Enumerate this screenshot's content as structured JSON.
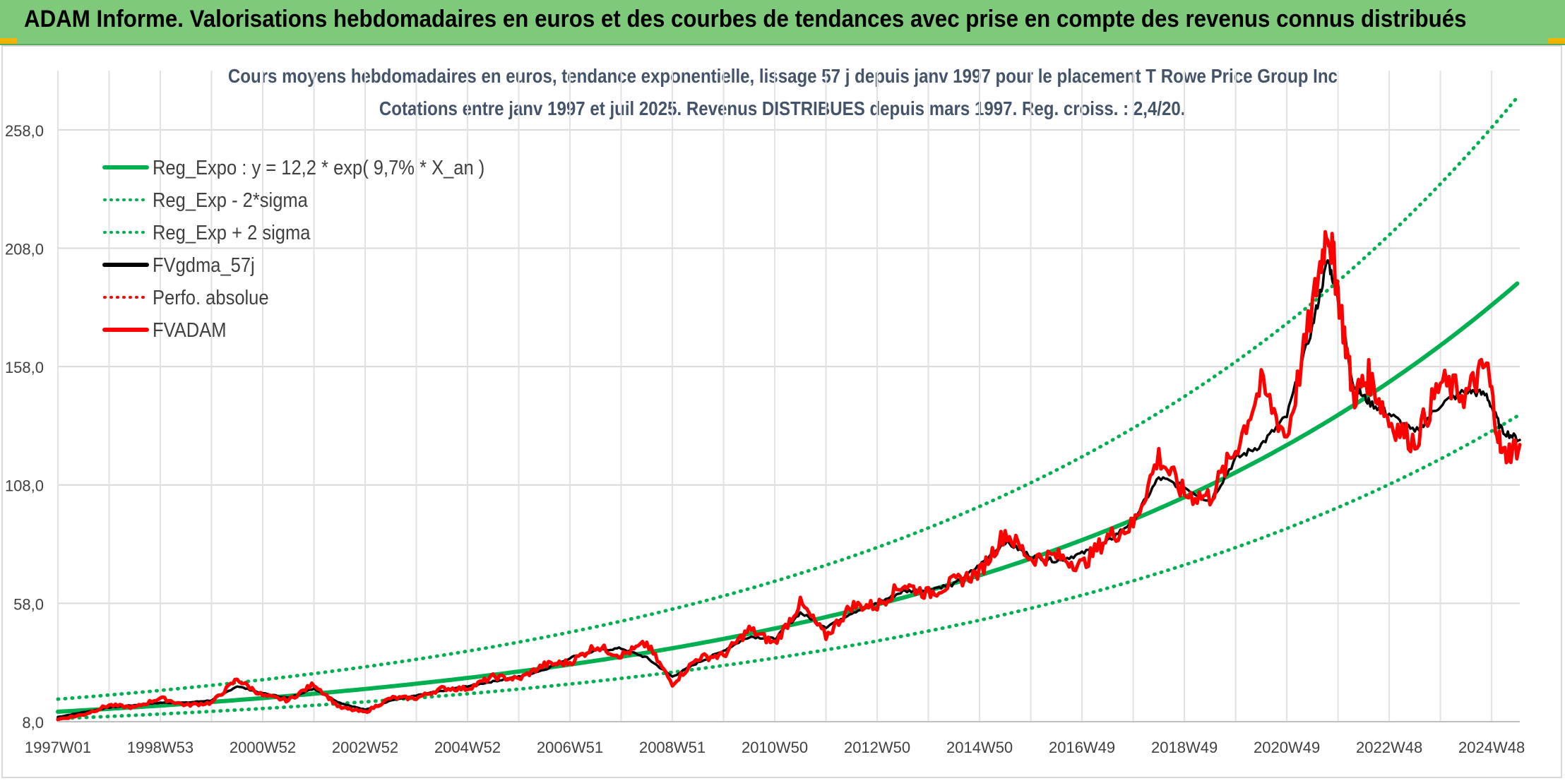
{
  "header": {
    "banner": "ADAM Informe. Valorisations hebdomadaires en euros et des courbes de tendances avec prise en compte des revenus connus distribués"
  },
  "chart_data": {
    "type": "line",
    "title": "Cours moyens hebdomadaires en euros, tendance exponentielle, lissage 57 j depuis janv 1997 pour le placement T Rowe Price Group Inc",
    "subtitle": "Cotations entre janv 1997 et juil 2025. Revenus DISTRIBUES depuis mars 1997. Reg. croiss. : 2,4/20.",
    "xlabel": "",
    "ylabel": "",
    "ylim": [
      8,
      283
    ],
    "y_ticks": [
      "8,0",
      "58,0",
      "108,0",
      "158,0",
      "208,0",
      "258,0"
    ],
    "x_ticks": [
      "1997W01",
      "1998W53",
      "2000W52",
      "2002W52",
      "2004W52",
      "2006W51",
      "2008W51",
      "2010W50",
      "2012W50",
      "2014W50",
      "2016W49",
      "2018W49",
      "2020W49",
      "2022W48",
      "2024W48"
    ],
    "x_range_years": [
      1997.0,
      2025.55
    ],
    "grid": true,
    "legend_position": "top-left",
    "colors": {
      "trend": "#00b050",
      "smooth": "#000000",
      "adam": "#ff0000"
    },
    "regression": {
      "a": 12.2,
      "rate": 0.097
    },
    "legend": [
      {
        "label": "Reg_Expo : y = 12,2 * exp( 9,7% *  X_an )",
        "color": "#00b050",
        "style": "solid"
      },
      {
        "label": "Reg_Exp - 2*sigma",
        "color": "#00b050",
        "style": "dotted"
      },
      {
        "label": "Reg_Exp + 2 sigma",
        "color": "#00b050",
        "style": "dotted"
      },
      {
        "label": "FVgdma_57j",
        "color": "#000000",
        "style": "solid"
      },
      {
        "label": "Perfo. absolue",
        "color": "#ff0000",
        "style": "dotted"
      },
      {
        "label": "FVADAM",
        "color": "#ff0000",
        "style": "solid"
      }
    ],
    "series": [
      {
        "name": "Reg_Expo : y = 12,2 * exp( 9,7% *  X_an )",
        "x_years": [
          1997,
          1999,
          2001,
          2003,
          2005,
          2007,
          2009,
          2011,
          2013,
          2015,
          2017,
          2019,
          2021,
          2023,
          2025.55
        ],
        "values": [
          12.2,
          14.7,
          17.8,
          21.5,
          25.9,
          31.3,
          37.8,
          45.7,
          55.1,
          66.6,
          80.4,
          97.1,
          117.3,
          141.6,
          194.0
        ]
      },
      {
        "name": "Reg_Exp - 2*sigma",
        "x_years": [
          1997,
          1999,
          2001,
          2003,
          2005,
          2007,
          2009,
          2011,
          2013,
          2015,
          2017,
          2019,
          2021,
          2023,
          2025.55
        ],
        "values": [
          9.3,
          11.2,
          13.5,
          16.3,
          19.7,
          23.8,
          28.7,
          34.7,
          41.9,
          50.6,
          61.1,
          73.8,
          89.1,
          107.6,
          137.7
        ]
      },
      {
        "name": "Reg_Exp + 2 sigma",
        "x_years": [
          1997,
          1999,
          2001,
          2003,
          2005,
          2007,
          2009,
          2011,
          2013,
          2015,
          2017,
          2019,
          2021,
          2023,
          2025.55
        ],
        "values": [
          17.5,
          21.1,
          25.5,
          30.8,
          37.2,
          44.9,
          54.2,
          65.5,
          79.1,
          95.5,
          115.3,
          139.3,
          168.2,
          203.1,
          273.0
        ]
      },
      {
        "name": "FVgdma_57j",
        "x_years": [
          1997.0,
          1997.5,
          1998.0,
          1998.5,
          1999.0,
          1999.5,
          2000.0,
          2000.5,
          2001.0,
          2001.5,
          2002.0,
          2002.5,
          2003.0,
          2003.5,
          2004.0,
          2004.5,
          2005.0,
          2005.5,
          2006.0,
          2006.5,
          2007.0,
          2007.5,
          2008.0,
          2008.5,
          2009.0,
          2009.5,
          2010.0,
          2010.5,
          2011.0,
          2011.5,
          2012.0,
          2012.5,
          2013.0,
          2013.5,
          2014.0,
          2014.5,
          2015.0,
          2015.5,
          2016.0,
          2016.5,
          2017.0,
          2017.5,
          2018.0,
          2018.5,
          2019.0,
          2019.5,
          2020.0,
          2020.5,
          2021.0,
          2021.5,
          2021.8,
          2022.0,
          2022.3,
          2022.6,
          2023.0,
          2023.5,
          2024.0,
          2024.5,
          2024.9,
          2025.2,
          2025.55
        ],
        "values": [
          10,
          12,
          14,
          15,
          16,
          16,
          17,
          23,
          20,
          18,
          22,
          16,
          13,
          17,
          19,
          21,
          23,
          25,
          27,
          30,
          35,
          38,
          39,
          35,
          27,
          33,
          38,
          44,
          43,
          54,
          48,
          54,
          58,
          63,
          64,
          66,
          74,
          84,
          78,
          76,
          79,
          84,
          93,
          111,
          107,
          101,
          119,
          125,
          137,
          175,
          203,
          187,
          150,
          143,
          138,
          130,
          142,
          148,
          146,
          131,
          127
        ]
      },
      {
        "name": "FVADAM",
        "x_years": [
          1997.0,
          1997.5,
          1998.0,
          1998.5,
          1999.0,
          1999.5,
          2000.0,
          2000.5,
          2001.0,
          2001.5,
          2002.0,
          2002.5,
          2003.0,
          2003.5,
          2004.0,
          2004.5,
          2005.0,
          2005.5,
          2006.0,
          2006.5,
          2007.0,
          2007.5,
          2008.0,
          2008.5,
          2009.0,
          2009.5,
          2010.0,
          2010.5,
          2011.0,
          2011.5,
          2012.0,
          2012.5,
          2013.0,
          2013.5,
          2014.0,
          2014.5,
          2015.0,
          2015.5,
          2016.0,
          2016.5,
          2017.0,
          2017.5,
          2018.0,
          2018.5,
          2019.0,
          2019.5,
          2020.0,
          2020.5,
          2021.0,
          2021.5,
          2021.8,
          2022.0,
          2022.3,
          2022.6,
          2023.0,
          2023.5,
          2024.0,
          2024.5,
          2024.9,
          2025.2,
          2025.55
        ],
        "values": [
          9,
          11,
          15,
          14,
          18,
          15,
          16,
          26,
          19,
          17,
          24,
          14,
          12,
          18,
          18,
          22,
          22,
          27,
          26,
          32,
          33,
          40,
          36,
          41,
          24,
          35,
          36,
          47,
          41,
          58,
          44,
          57,
          57,
          66,
          62,
          67,
          71,
          88,
          77,
          78,
          74,
          86,
          91,
          120,
          104,
          103,
          123,
          150,
          128,
          183,
          218,
          190,
          145,
          154,
          135,
          126,
          151,
          146,
          159,
          120,
          125
        ]
      }
    ]
  }
}
